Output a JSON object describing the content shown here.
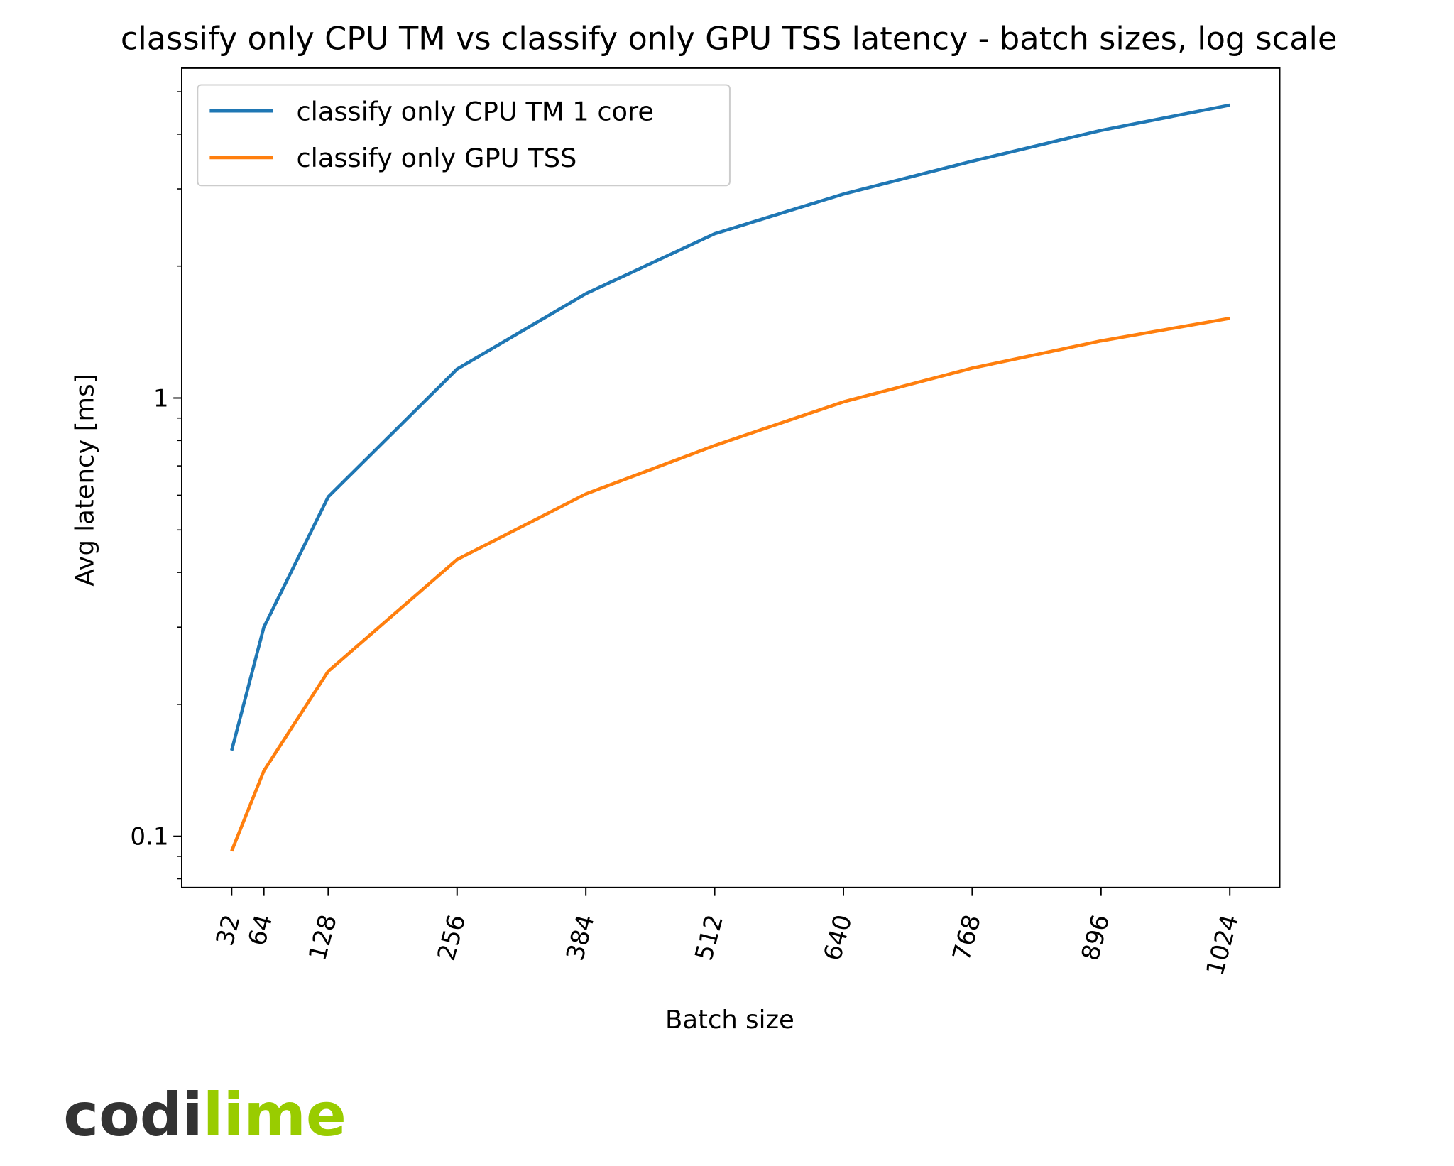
{
  "chart_data": {
    "type": "line",
    "title": "classify only CPU TM vs classify only GPU TSS latency - batch sizes, log scale",
    "x_label": "Batch size",
    "y_label": "Avg latency [ms]",
    "x": [
      32,
      64,
      128,
      256,
      384,
      512,
      640,
      768,
      896,
      1024
    ],
    "series": [
      {
        "name": "classify only CPU TM 1 core",
        "color": "#1f77b4",
        "values": [
          0.157,
          0.3,
          0.595,
          1.164,
          1.73,
          2.37,
          2.92,
          3.47,
          4.08,
          4.66
        ]
      },
      {
        "name": "classify only GPU TSS",
        "color": "#ff7f0e",
        "values": [
          0.0925,
          0.141,
          0.238,
          0.428,
          0.604,
          0.779,
          0.98,
          1.17,
          1.35,
          1.52
        ]
      }
    ],
    "xlim": [
      -17.6,
      1073.6
    ],
    "xticks": [
      32,
      64,
      128,
      256,
      384,
      512,
      640,
      768,
      896,
      1024
    ],
    "ylim": [
      0.0764,
      5.66
    ],
    "yticks": [
      {
        "value": 0.1,
        "label": "0.1"
      },
      1
    ],
    "log_y": true,
    "minor_ticks": true,
    "grid": false,
    "legend": "upper left"
  },
  "logo": {
    "dark": "codi",
    "green": "lime"
  }
}
